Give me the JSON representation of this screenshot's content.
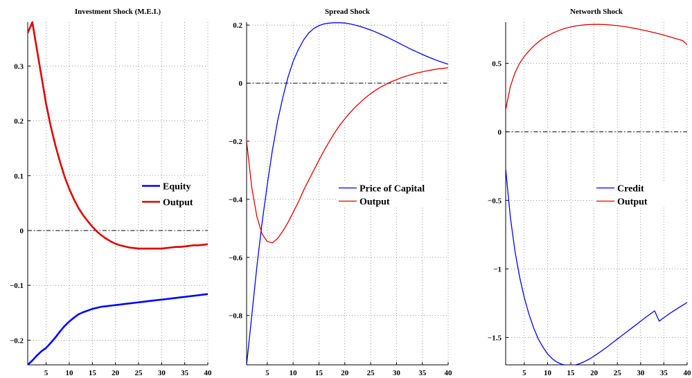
{
  "chart_data": [
    {
      "type": "line",
      "title": "Investment Shock (M.E.I.)",
      "xlabel": "",
      "ylabel": "",
      "xlim": [
        1,
        40
      ],
      "ylim": [
        -0.245,
        0.38
      ],
      "xticks": [
        5,
        10,
        15,
        20,
        25,
        30,
        35,
        40
      ],
      "yticks": [
        -0.2,
        -0.1,
        0,
        0.1,
        0.2,
        0.3
      ],
      "ytick_labels": [
        "−0.2",
        "−0.1",
        "0",
        "0.1",
        "0.2",
        "0.3"
      ],
      "grid": true,
      "zero_line": true,
      "legend": "center-right",
      "line_width": 2.6,
      "series": [
        {
          "name": "Equity",
          "color": "#0000ff",
          "x": [
            1,
            2,
            3,
            4,
            5,
            6,
            7,
            8,
            9,
            10,
            11,
            12,
            13,
            14,
            15,
            16,
            17,
            18,
            19,
            20,
            21,
            22,
            23,
            24,
            25,
            26,
            27,
            28,
            29,
            30,
            31,
            32,
            33,
            34,
            35,
            36,
            37,
            38,
            39,
            40
          ],
          "values": [
            -0.245,
            -0.237,
            -0.228,
            -0.22,
            -0.214,
            -0.205,
            -0.195,
            -0.184,
            -0.174,
            -0.166,
            -0.159,
            -0.153,
            -0.149,
            -0.146,
            -0.143,
            -0.141,
            -0.139,
            -0.138,
            -0.137,
            -0.136,
            -0.135,
            -0.134,
            -0.133,
            -0.132,
            -0.131,
            -0.13,
            -0.129,
            -0.128,
            -0.127,
            -0.126,
            -0.125,
            -0.124,
            -0.123,
            -0.122,
            -0.121,
            -0.12,
            -0.119,
            -0.118,
            -0.117,
            -0.116
          ]
        },
        {
          "name": "Output",
          "color": "#e00000",
          "x": [
            1,
            2,
            3,
            4,
            5,
            6,
            7,
            8,
            9,
            10,
            11,
            12,
            13,
            14,
            15,
            16,
            17,
            18,
            19,
            20,
            21,
            22,
            23,
            24,
            25,
            26,
            27,
            28,
            29,
            30,
            31,
            32,
            33,
            34,
            35,
            36,
            37,
            38,
            39,
            40
          ],
          "values": [
            0.36,
            0.38,
            0.33,
            0.28,
            0.23,
            0.19,
            0.155,
            0.125,
            0.098,
            0.076,
            0.057,
            0.041,
            0.028,
            0.017,
            0.007,
            -0.002,
            -0.009,
            -0.015,
            -0.02,
            -0.024,
            -0.027,
            -0.029,
            -0.031,
            -0.032,
            -0.033,
            -0.033,
            -0.033,
            -0.033,
            -0.033,
            -0.033,
            -0.032,
            -0.031,
            -0.03,
            -0.03,
            -0.029,
            -0.028,
            -0.027,
            -0.027,
            -0.026,
            -0.025
          ]
        }
      ]
    },
    {
      "type": "line",
      "title": "Spread Shock",
      "xlabel": "",
      "ylabel": "",
      "xlim": [
        1,
        40
      ],
      "ylim": [
        -0.97,
        0.21
      ],
      "xticks": [
        5,
        10,
        15,
        20,
        25,
        30,
        35,
        40
      ],
      "yticks": [
        -0.8,
        -0.6,
        -0.4,
        -0.2,
        0,
        0.2
      ],
      "ytick_labels": [
        "−0.8",
        "−0.6",
        "−0.4",
        "−0.2",
        "0",
        "0.2"
      ],
      "grid": true,
      "zero_line": true,
      "legend": "center-right",
      "line_width": 1.3,
      "series": [
        {
          "name": "Price of Capital",
          "color": "#0000ff",
          "x": [
            1,
            2,
            3,
            4,
            5,
            6,
            7,
            8,
            9,
            10,
            11,
            12,
            13,
            14,
            15,
            16,
            17,
            18,
            19,
            20,
            21,
            22,
            23,
            24,
            25,
            26,
            27,
            28,
            29,
            30,
            31,
            32,
            33,
            34,
            35,
            36,
            37,
            38,
            39,
            40
          ],
          "values": [
            -0.97,
            -0.8,
            -0.63,
            -0.48,
            -0.35,
            -0.23,
            -0.13,
            -0.05,
            0.02,
            0.075,
            0.115,
            0.148,
            0.172,
            0.188,
            0.198,
            0.204,
            0.207,
            0.208,
            0.208,
            0.207,
            0.204,
            0.2,
            0.195,
            0.189,
            0.183,
            0.176,
            0.168,
            0.16,
            0.151,
            0.142,
            0.133,
            0.124,
            0.115,
            0.107,
            0.099,
            0.091,
            0.084,
            0.077,
            0.071,
            0.065
          ]
        },
        {
          "name": "Output",
          "color": "#e00000",
          "x": [
            1,
            2,
            3,
            4,
            5,
            6,
            7,
            8,
            9,
            10,
            11,
            12,
            13,
            14,
            15,
            16,
            17,
            18,
            19,
            20,
            21,
            22,
            23,
            24,
            25,
            26,
            27,
            28,
            29,
            30,
            31,
            32,
            33,
            34,
            35,
            36,
            37,
            38,
            39,
            40
          ],
          "values": [
            -0.2,
            -0.36,
            -0.46,
            -0.52,
            -0.545,
            -0.55,
            -0.535,
            -0.51,
            -0.48,
            -0.445,
            -0.41,
            -0.37,
            -0.335,
            -0.3,
            -0.265,
            -0.232,
            -0.201,
            -0.172,
            -0.146,
            -0.123,
            -0.102,
            -0.083,
            -0.066,
            -0.05,
            -0.036,
            -0.024,
            -0.013,
            -0.004,
            0.005,
            0.012,
            0.019,
            0.025,
            0.03,
            0.035,
            0.039,
            0.043,
            0.046,
            0.049,
            0.051,
            0.053
          ]
        }
      ]
    },
    {
      "type": "line",
      "title": "Networth Shock",
      "xlabel": "",
      "ylabel": "",
      "xlim": [
        1,
        40
      ],
      "ylim": [
        -1.7,
        0.8
      ],
      "xticks": [
        5,
        10,
        15,
        20,
        25,
        30,
        35,
        40
      ],
      "yticks": [
        -1.5,
        -1,
        -0.5,
        0,
        0.5
      ],
      "ytick_labels": [
        "−1.5",
        "−1",
        "−0.5",
        "0",
        "0.5"
      ],
      "grid": true,
      "zero_line": true,
      "legend": "center-right",
      "line_width": 1.3,
      "series": [
        {
          "name": "Credit",
          "color": "#0000ff",
          "x": [
            1,
            2,
            3,
            4,
            5,
            6,
            7,
            8,
            9,
            10,
            11,
            12,
            13,
            14,
            15,
            16,
            17,
            18,
            19,
            20,
            21,
            22,
            23,
            24,
            25,
            26,
            27,
            28,
            29,
            30,
            31,
            32,
            33,
            34,
            35,
            36,
            37,
            38,
            39,
            40
          ],
          "values": [
            -0.27,
            -0.62,
            -0.87,
            -1.06,
            -1.21,
            -1.33,
            -1.43,
            -1.51,
            -1.57,
            -1.62,
            -1.655,
            -1.68,
            -1.695,
            -1.703,
            -1.705,
            -1.7,
            -1.69,
            -1.675,
            -1.657,
            -1.636,
            -1.613,
            -1.589,
            -1.564,
            -1.538,
            -1.512,
            -1.486,
            -1.46,
            -1.434,
            -1.408,
            -1.382,
            -1.356,
            -1.331,
            -1.306,
            -1.381,
            -1.356,
            -1.332,
            -1.309,
            -1.287,
            -1.266,
            -1.245
          ]
        },
        {
          "name": "Output",
          "color": "#e00000",
          "x": [
            1,
            2,
            3,
            4,
            5,
            6,
            7,
            8,
            9,
            10,
            11,
            12,
            13,
            14,
            15,
            16,
            17,
            18,
            19,
            20,
            21,
            22,
            23,
            24,
            25,
            26,
            27,
            28,
            29,
            30,
            31,
            32,
            33,
            34,
            35,
            36,
            37,
            38,
            39,
            40
          ],
          "values": [
            0.16,
            0.33,
            0.43,
            0.5,
            0.55,
            0.59,
            0.625,
            0.655,
            0.68,
            0.7,
            0.718,
            0.733,
            0.746,
            0.757,
            0.765,
            0.772,
            0.777,
            0.781,
            0.783,
            0.784,
            0.784,
            0.783,
            0.781,
            0.778,
            0.774,
            0.77,
            0.765,
            0.759,
            0.753,
            0.746,
            0.739,
            0.731,
            0.723,
            0.714,
            0.705,
            0.696,
            0.686,
            0.676,
            0.666,
            0.636
          ]
        }
      ]
    }
  ]
}
